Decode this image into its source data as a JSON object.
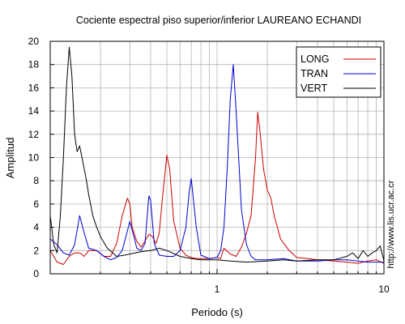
{
  "chart_data": {
    "type": "line",
    "title": "Cociente espectral piso superior/inferior LAUREANO ECHANDI",
    "xlabel": "Periodo (s)",
    "ylabel": "Amplitud",
    "x_scale": "log",
    "xlim": [
      0.1,
      10
    ],
    "ylim": [
      0,
      20
    ],
    "x_ticks": [
      1,
      10
    ],
    "x_tick_labels": [
      "1",
      "10"
    ],
    "y_ticks": [
      0,
      2,
      4,
      6,
      8,
      10,
      12,
      14,
      16,
      18,
      20
    ],
    "y_tick_labels": [
      "0",
      "2",
      "4",
      "6",
      "8",
      "10",
      "12",
      "14",
      "16",
      "18",
      "20"
    ],
    "grid": true,
    "legend_position": "top-right",
    "side_text": "http://www.lis.ucr.ac.cr",
    "series": [
      {
        "name": "LONG",
        "color": "#cc0000",
        "x": [
          0.1,
          0.11,
          0.12,
          0.13,
          0.14,
          0.15,
          0.16,
          0.17,
          0.19,
          0.21,
          0.23,
          0.25,
          0.27,
          0.29,
          0.3,
          0.31,
          0.33,
          0.35,
          0.37,
          0.39,
          0.41,
          0.43,
          0.45,
          0.47,
          0.5,
          0.52,
          0.55,
          0.6,
          0.65,
          0.7,
          0.75,
          0.8,
          0.9,
          1.0,
          1.05,
          1.1,
          1.2,
          1.3,
          1.4,
          1.5,
          1.6,
          1.7,
          1.75,
          1.8,
          1.9,
          2.0,
          2.1,
          2.2,
          2.4,
          2.7,
          3.0,
          3.5,
          4.0,
          5.0,
          6.0,
          7.0,
          8.0,
          9.0,
          10.0
        ],
        "y": [
          2.0,
          1.0,
          0.8,
          1.5,
          1.8,
          1.8,
          1.5,
          2.0,
          2.0,
          1.5,
          1.5,
          2.6,
          5.0,
          6.5,
          6.0,
          4.0,
          2.8,
          2.3,
          2.8,
          3.4,
          3.2,
          2.6,
          3.5,
          6.5,
          10.2,
          9.0,
          4.5,
          2.2,
          1.6,
          1.4,
          1.3,
          1.3,
          1.3,
          1.4,
          1.3,
          2.2,
          1.7,
          1.5,
          2.3,
          3.5,
          5.0,
          10.0,
          13.9,
          12.5,
          9.0,
          7.2,
          6.5,
          5.0,
          3.0,
          2.0,
          1.4,
          1.3,
          1.2,
          1.1,
          1.0,
          0.9,
          1.1,
          1.2,
          0.9
        ]
      },
      {
        "name": "TRAN",
        "color": "#0000cc",
        "x": [
          0.1,
          0.11,
          0.12,
          0.13,
          0.14,
          0.15,
          0.16,
          0.17,
          0.19,
          0.21,
          0.23,
          0.25,
          0.27,
          0.3,
          0.32,
          0.33,
          0.35,
          0.37,
          0.39,
          0.4,
          0.42,
          0.45,
          0.5,
          0.55,
          0.6,
          0.65,
          0.68,
          0.7,
          0.75,
          0.8,
          0.9,
          1.0,
          1.05,
          1.1,
          1.15,
          1.2,
          1.25,
          1.3,
          1.4,
          1.5,
          1.6,
          1.7,
          2.0,
          2.5,
          3.0,
          4.0,
          5.0,
          6.0,
          7.0,
          8.0,
          10.0
        ],
        "y": [
          3.0,
          2.5,
          1.8,
          1.6,
          2.5,
          5.0,
          3.5,
          2.2,
          2.0,
          1.5,
          1.2,
          1.4,
          2.0,
          4.5,
          3.0,
          2.2,
          2.0,
          2.6,
          6.7,
          6.3,
          2.6,
          1.6,
          1.5,
          1.5,
          2.0,
          4.0,
          7.0,
          8.2,
          4.0,
          1.6,
          1.3,
          1.4,
          2.0,
          4.0,
          9.0,
          15.0,
          18.0,
          14.0,
          5.5,
          2.5,
          1.5,
          1.2,
          1.2,
          1.3,
          1.1,
          1.1,
          1.2,
          1.2,
          1.1,
          1.0,
          1.0
        ]
      },
      {
        "name": "VERT",
        "color": "#000000",
        "x": [
          0.1,
          0.105,
          0.11,
          0.115,
          0.12,
          0.125,
          0.13,
          0.135,
          0.14,
          0.145,
          0.15,
          0.155,
          0.16,
          0.165,
          0.17,
          0.18,
          0.19,
          0.2,
          0.22,
          0.25,
          0.28,
          0.3,
          0.35,
          0.4,
          0.45,
          0.5,
          0.6,
          0.7,
          0.8,
          1.0,
          1.2,
          1.5,
          2.0,
          2.5,
          3.0,
          4.0,
          5.0,
          6.0,
          6.5,
          7.0,
          7.5,
          8.0,
          8.5,
          9.0,
          9.5,
          10.0
        ],
        "y": [
          5.0,
          2.5,
          1.8,
          5.0,
          10.0,
          16.0,
          19.5,
          17.0,
          12.0,
          10.5,
          11.0,
          10.0,
          9.0,
          8.0,
          6.8,
          5.0,
          4.0,
          3.2,
          2.2,
          1.5,
          1.6,
          1.7,
          1.9,
          2.0,
          2.2,
          2.0,
          1.5,
          1.3,
          1.2,
          1.2,
          1.1,
          1.0,
          1.1,
          1.2,
          1.1,
          1.2,
          1.2,
          1.5,
          1.8,
          1.3,
          2.0,
          1.5,
          1.8,
          2.0,
          2.4,
          1.1
        ]
      }
    ]
  }
}
